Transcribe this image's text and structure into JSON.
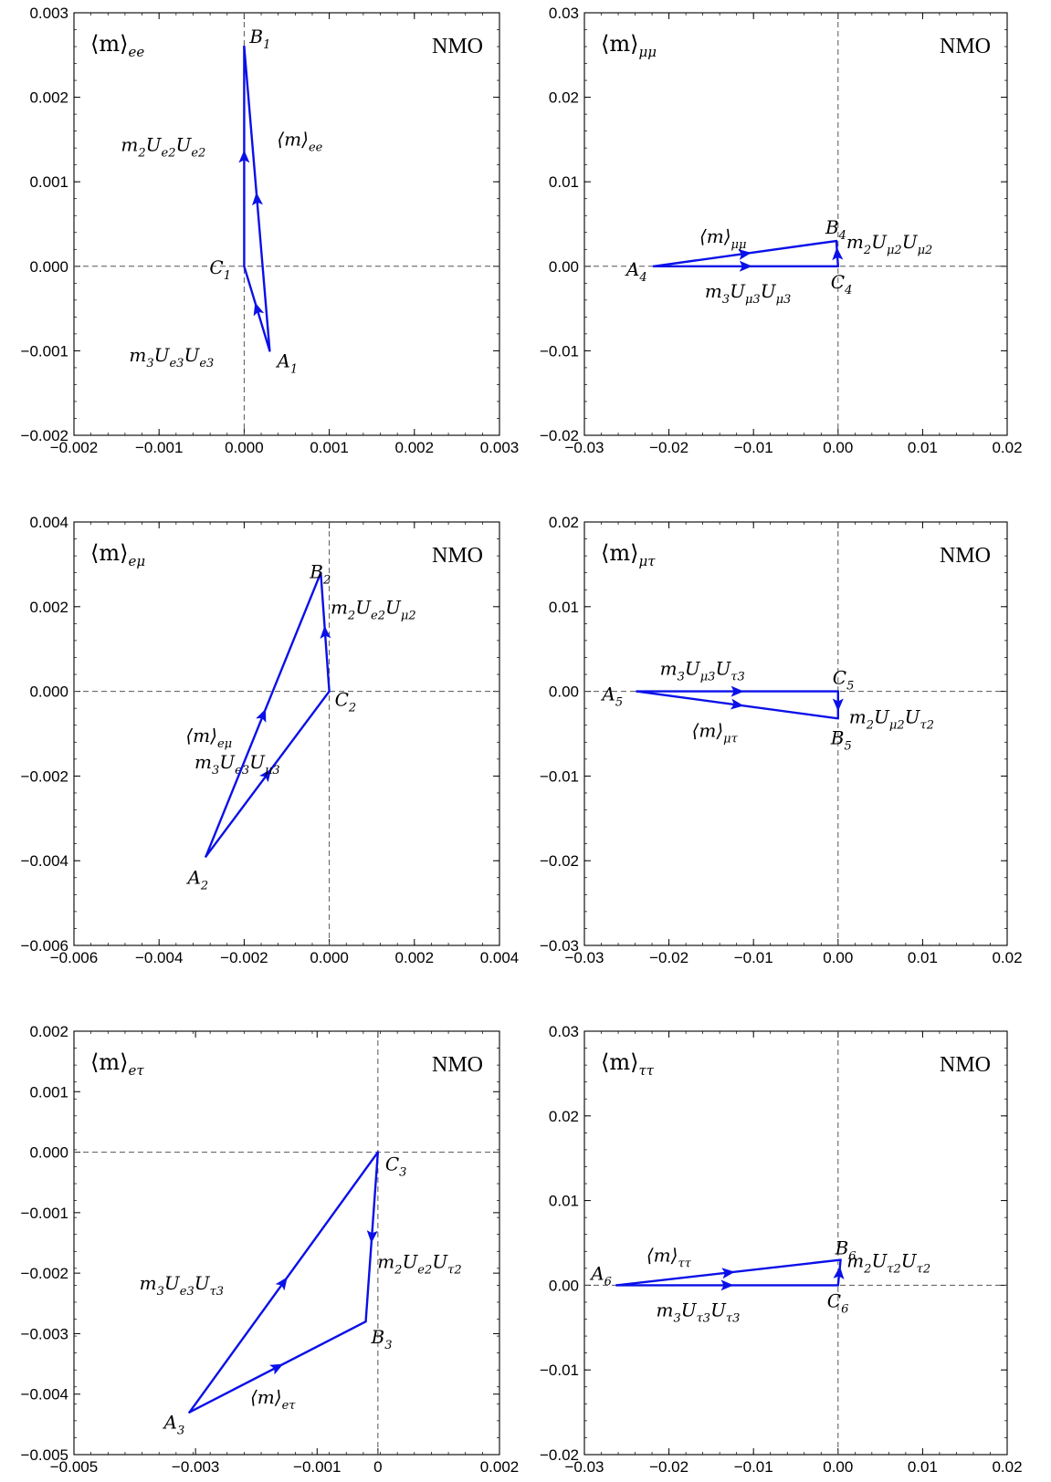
{
  "chart_data": [
    {
      "type": "vector-triangle",
      "title": "⟨m⟩",
      "title_sub": "ee",
      "tag": "NMO",
      "xlim": [
        -0.002,
        0.003
      ],
      "ylim": [
        -0.002,
        0.003
      ],
      "xticks": [
        "−0.002",
        "−0.001",
        "0.000",
        "0.001",
        "0.002",
        "0.003"
      ],
      "yticks": [
        "−0.002",
        "−0.001",
        "0.000",
        "0.001",
        "0.002",
        "0.003"
      ],
      "points": {
        "A": {
          "name": "A",
          "sub": "1",
          "x": 0.0003,
          "y": -0.001
        },
        "B": {
          "name": "B",
          "sub": "1",
          "x": 0.0,
          "y": 0.0026
        },
        "C": {
          "name": "C",
          "sub": "1",
          "x": 0.0,
          "y": 0.0
        }
      },
      "vectors": [
        {
          "from": "A",
          "to": "C",
          "label": "m",
          "label_sub": "3",
          "label_rest": "U",
          "rest_sub": "e3",
          "label_rest2": "U",
          "rest2_sub": "e3"
        },
        {
          "from": "C",
          "to": "B",
          "label": "m",
          "label_sub": "2",
          "label_rest": "U",
          "rest_sub": "e2",
          "label_rest2": "U",
          "rest2_sub": "e2"
        },
        {
          "from": "A",
          "to": "B",
          "label": "⟨m⟩",
          "label_sub": "ee"
        }
      ]
    },
    {
      "type": "vector-triangle",
      "title": "⟨m⟩",
      "title_sub": "μμ",
      "tag": "NMO",
      "xlim": [
        -0.03,
        0.02
      ],
      "ylim": [
        -0.02,
        0.03
      ],
      "xticks": [
        "−0.03",
        "−0.02",
        "−0.01",
        "0.00",
        "0.01",
        "0.02"
      ],
      "yticks": [
        "−0.02",
        "−0.01",
        "0.00",
        "0.01",
        "0.02",
        "0.03"
      ],
      "points": {
        "A": {
          "name": "A",
          "sub": "4",
          "x": -0.0218,
          "y": 0.0
        },
        "B": {
          "name": "B",
          "sub": "4",
          "x": -0.0002,
          "y": 0.003
        },
        "C": {
          "name": "C",
          "sub": "4",
          "x": 0.0,
          "y": 0.0
        }
      },
      "vectors": [
        {
          "from": "A",
          "to": "C",
          "label": "m",
          "label_sub": "3",
          "label_rest": "U",
          "rest_sub": "μ3",
          "label_rest2": "U",
          "rest2_sub": "μ3"
        },
        {
          "from": "C",
          "to": "B",
          "label": "m",
          "label_sub": "2",
          "label_rest": "U",
          "rest_sub": "μ2",
          "label_rest2": "U",
          "rest2_sub": "μ2"
        },
        {
          "from": "A",
          "to": "B",
          "label": "⟨m⟩",
          "label_sub": "μμ"
        }
      ]
    },
    {
      "type": "vector-triangle",
      "title": "⟨m⟩",
      "title_sub": "eμ",
      "tag": "NMO",
      "xlim": [
        -0.006,
        0.004
      ],
      "ylim": [
        -0.006,
        0.004
      ],
      "xticks": [
        "−0.006",
        "−0.004",
        "−0.002",
        "0.000",
        "0.002",
        "0.004"
      ],
      "yticks": [
        "−0.006",
        "−0.004",
        "−0.002",
        "0.000",
        "0.002",
        "0.004"
      ],
      "points": {
        "A": {
          "name": "A",
          "sub": "2",
          "x": -0.0029,
          "y": -0.0039
        },
        "B": {
          "name": "B",
          "sub": "2",
          "x": -0.0002,
          "y": 0.0028
        },
        "C": {
          "name": "C",
          "sub": "2",
          "x": 0.0,
          "y": 0.0
        }
      },
      "vectors": [
        {
          "from": "A",
          "to": "C",
          "label": "m",
          "label_sub": "3",
          "label_rest": "U",
          "rest_sub": "e3",
          "label_rest2": "U",
          "rest2_sub": "μ3"
        },
        {
          "from": "C",
          "to": "B",
          "label": "m",
          "label_sub": "2",
          "label_rest": "U",
          "rest_sub": "e2",
          "label_rest2": "U",
          "rest2_sub": "μ2"
        },
        {
          "from": "A",
          "to": "B",
          "label": "⟨m⟩",
          "label_sub": "eμ"
        }
      ]
    },
    {
      "type": "vector-triangle",
      "title": "⟨m⟩",
      "title_sub": "μτ",
      "tag": "NMO",
      "xlim": [
        -0.03,
        0.02
      ],
      "ylim": [
        -0.03,
        0.02
      ],
      "xticks": [
        "−0.03",
        "−0.02",
        "−0.01",
        "0.00",
        "0.01",
        "0.02"
      ],
      "yticks": [
        "−0.03",
        "−0.02",
        "−0.01",
        "0.00",
        "0.01",
        "0.02"
      ],
      "points": {
        "A": {
          "name": "A",
          "sub": "5",
          "x": -0.0238,
          "y": 0.0
        },
        "B": {
          "name": "B",
          "sub": "5",
          "x": 0.0,
          "y": -0.0032
        },
        "C": {
          "name": "C",
          "sub": "5",
          "x": 0.0,
          "y": 0.0
        }
      },
      "vectors": [
        {
          "from": "A",
          "to": "C",
          "label": "m",
          "label_sub": "3",
          "label_rest": "U",
          "rest_sub": "μ3",
          "label_rest2": "U",
          "rest2_sub": "τ3"
        },
        {
          "from": "C",
          "to": "B",
          "label": "m",
          "label_sub": "2",
          "label_rest": "U",
          "rest_sub": "μ2",
          "label_rest2": "U",
          "rest2_sub": "τ2"
        },
        {
          "from": "A",
          "to": "B",
          "label": "⟨m⟩",
          "label_sub": "μτ"
        }
      ]
    },
    {
      "type": "vector-triangle",
      "title": "⟨m⟩",
      "title_sub": "eτ",
      "tag": "NMO",
      "xlim": [
        -0.005,
        0.002
      ],
      "ylim": [
        -0.005,
        0.002
      ],
      "xticks": [
        "−0.005",
        "−0.003",
        "−0.001",
        "0",
        "0.002"
      ],
      "xtick_values": [
        -0.005,
        -0.003,
        -0.001,
        0.0,
        0.002
      ],
      "yticks": [
        "−0.005",
        "−0.004",
        "−0.003",
        "−0.002",
        "−0.001",
        "0.000",
        "0.001",
        "0.002"
      ],
      "points": {
        "A": {
          "name": "A",
          "sub": "3",
          "x": -0.0031,
          "y": -0.0043
        },
        "B": {
          "name": "B",
          "sub": "3",
          "x": -0.0002,
          "y": -0.0028
        },
        "C": {
          "name": "C",
          "sub": "3",
          "x": 0.0,
          "y": 0.0
        }
      },
      "vectors": [
        {
          "from": "A",
          "to": "C",
          "label": "m",
          "label_sub": "3",
          "label_rest": "U",
          "rest_sub": "e3",
          "label_rest2": "U",
          "rest2_sub": "τ3"
        },
        {
          "from": "C",
          "to": "B",
          "label": "m",
          "label_sub": "2",
          "label_rest": "U",
          "rest_sub": "e2",
          "label_rest2": "U",
          "rest2_sub": "τ2"
        },
        {
          "from": "A",
          "to": "B",
          "label": "⟨m⟩",
          "label_sub": "eτ"
        }
      ]
    },
    {
      "type": "vector-triangle",
      "title": "⟨m⟩",
      "title_sub": "ττ",
      "tag": "NMO",
      "xlim": [
        -0.03,
        0.02
      ],
      "ylim": [
        -0.02,
        0.03
      ],
      "xticks": [
        "−0.03",
        "−0.02",
        "−0.01",
        "0.00",
        "0.01",
        "0.02"
      ],
      "yticks": [
        "−0.02",
        "−0.01",
        "0.00",
        "0.01",
        "0.02",
        "0.03"
      ],
      "points": {
        "A": {
          "name": "A",
          "sub": "6",
          "x": -0.0262,
          "y": 0.0
        },
        "B": {
          "name": "B",
          "sub": "6",
          "x": 0.0003,
          "y": 0.003
        },
        "C": {
          "name": "C",
          "sub": "6",
          "x": 0.0,
          "y": 0.0
        }
      },
      "vectors": [
        {
          "from": "A",
          "to": "C",
          "label": "m",
          "label_sub": "3",
          "label_rest": "U",
          "rest_sub": "τ3",
          "label_rest2": "U",
          "rest2_sub": "τ3"
        },
        {
          "from": "C",
          "to": "B",
          "label": "m",
          "label_sub": "2",
          "label_rest": "U",
          "rest_sub": "τ2",
          "label_rest2": "U",
          "rest2_sub": "τ2"
        },
        {
          "from": "A",
          "to": "B",
          "label": "⟨m⟩",
          "label_sub": "ττ"
        }
      ]
    }
  ]
}
